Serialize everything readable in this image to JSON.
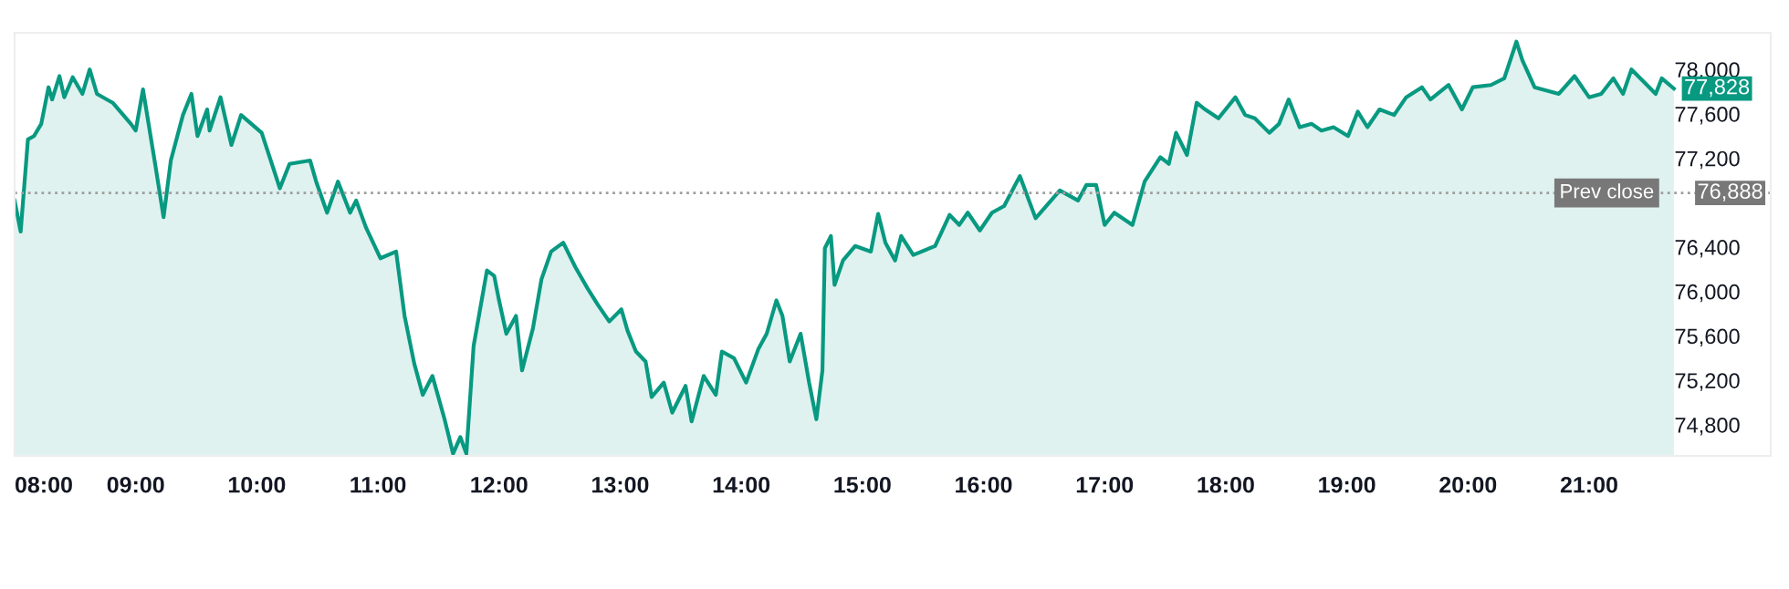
{
  "chart_data": {
    "type": "area",
    "x": [
      8.0,
      8.05,
      8.11,
      8.16,
      8.22,
      8.28,
      8.31,
      8.37,
      8.41,
      8.48,
      8.56,
      8.62,
      8.68,
      8.81,
      8.96,
      9.0,
      9.06,
      9.16,
      9.23,
      9.29,
      9.39,
      9.46,
      9.51,
      9.59,
      9.61,
      9.7,
      9.79,
      9.87,
      10.04,
      10.19,
      10.27,
      10.44,
      10.49,
      10.58,
      10.67,
      10.77,
      10.82,
      10.9,
      11.02,
      11.15,
      11.22,
      11.3,
      11.37,
      11.45,
      11.55,
      11.62,
      11.68,
      11.73,
      11.79,
      11.9,
      11.96,
      12.0,
      12.06,
      12.14,
      12.19,
      12.28,
      12.35,
      12.43,
      12.53,
      12.63,
      12.73,
      12.81,
      12.91,
      13.01,
      13.06,
      13.13,
      13.21,
      13.26,
      13.36,
      13.43,
      13.54,
      13.59,
      13.69,
      13.79,
      13.84,
      13.94,
      14.04,
      14.14,
      14.21,
      14.29,
      14.34,
      14.4,
      14.49,
      14.56,
      14.62,
      14.67,
      14.69,
      14.74,
      14.77,
      14.84,
      14.94,
      15.07,
      15.13,
      15.19,
      15.27,
      15.32,
      15.42,
      15.6,
      15.72,
      15.8,
      15.87,
      15.97,
      16.07,
      16.17,
      16.3,
      16.43,
      16.63,
      16.78,
      16.85,
      16.93,
      17.0,
      17.08,
      17.23,
      17.33,
      17.46,
      17.53,
      17.59,
      17.68,
      17.76,
      17.83,
      17.94,
      18.08,
      18.16,
      18.24,
      18.36,
      18.44,
      18.52,
      18.61,
      18.71,
      18.79,
      18.89,
      19.01,
      19.09,
      19.17,
      19.27,
      19.39,
      19.49,
      19.62,
      19.69,
      19.84,
      19.95,
      20.04,
      20.19,
      20.3,
      20.4,
      20.45,
      20.55,
      20.75,
      20.88,
      21.0,
      21.1,
      21.2,
      21.28,
      21.35,
      21.45,
      21.55,
      21.6,
      21.7
    ],
    "series": [
      {
        "color": "#089981",
        "values": [
          76820,
          76540,
          77370,
          77400,
          77510,
          77840,
          77730,
          77940,
          77750,
          77930,
          77780,
          78000,
          77780,
          77700,
          77510,
          77450,
          77820,
          77150,
          76670,
          77180,
          77590,
          77780,
          77400,
          77640,
          77450,
          77750,
          77320,
          77590,
          77430,
          76930,
          77150,
          77180,
          76990,
          76710,
          76990,
          76710,
          76820,
          76580,
          76300,
          76360,
          75780,
          75350,
          75070,
          75240,
          74850,
          74540,
          74690,
          74540,
          75510,
          76190,
          76140,
          75920,
          75620,
          75780,
          75290,
          75670,
          76110,
          76360,
          76440,
          76220,
          76030,
          75890,
          75730,
          75840,
          75650,
          75460,
          75370,
          75050,
          75180,
          74910,
          75150,
          74830,
          75240,
          75070,
          75460,
          75400,
          75180,
          75480,
          75620,
          75920,
          75780,
          75370,
          75620,
          75180,
          74850,
          75290,
          76390,
          76500,
          76060,
          76280,
          76410,
          76360,
          76700,
          76440,
          76280,
          76500,
          76330,
          76410,
          76690,
          76600,
          76710,
          76550,
          76710,
          76770,
          77040,
          76660,
          76910,
          76820,
          76960,
          76960,
          76600,
          76710,
          76600,
          76990,
          77210,
          77150,
          77430,
          77230,
          77700,
          77640,
          77560,
          77750,
          77590,
          77560,
          77430,
          77510,
          77730,
          77480,
          77510,
          77450,
          77480,
          77400,
          77620,
          77480,
          77640,
          77590,
          77750,
          77840,
          77730,
          77860,
          77640,
          77840,
          77860,
          77920,
          78250,
          78080,
          77840,
          77780,
          77940,
          77750,
          77780,
          77920,
          77780,
          78000,
          77890,
          77780,
          77920,
          77828
        ]
      }
    ],
    "xlim": [
      8.0,
      22.5
    ],
    "ylim": [
      74520,
      78330
    ],
    "xticks": [
      {
        "value": 8,
        "label": "08:00"
      },
      {
        "value": 9,
        "label": "09:00"
      },
      {
        "value": 10,
        "label": "10:00"
      },
      {
        "value": 11,
        "label": "11:00"
      },
      {
        "value": 12,
        "label": "12:00"
      },
      {
        "value": 13,
        "label": "13:00"
      },
      {
        "value": 14,
        "label": "14:00"
      },
      {
        "value": 15,
        "label": "15:00"
      },
      {
        "value": 16,
        "label": "16:00"
      },
      {
        "value": 17,
        "label": "17:00"
      },
      {
        "value": 18,
        "label": "18:00"
      },
      {
        "value": 19,
        "label": "19:00"
      },
      {
        "value": 20,
        "label": "20:00"
      },
      {
        "value": 21,
        "label": "21:00"
      }
    ],
    "yticks": [
      {
        "value": 74800,
        "label": "74,800"
      },
      {
        "value": 75200,
        "label": "75,200"
      },
      {
        "value": 75600,
        "label": "75,600"
      },
      {
        "value": 76000,
        "label": "76,000"
      },
      {
        "value": 76400,
        "label": "76,400"
      },
      {
        "value": 77200,
        "label": "77,200"
      },
      {
        "value": 77600,
        "label": "77,600"
      },
      {
        "value": 78000,
        "label": "78,000"
      }
    ],
    "ref_lines": [
      {
        "axis": "y",
        "value": 76888,
        "label": "Prev close",
        "color": "#9e9e9e",
        "line_style": "dotted"
      }
    ],
    "annotations": [
      {
        "text": "77,828",
        "x": 21.7,
        "y": 77828
      },
      {
        "text": "76,888",
        "x": 22.5,
        "y": 76888
      }
    ],
    "grid": false,
    "legend": false
  }
}
